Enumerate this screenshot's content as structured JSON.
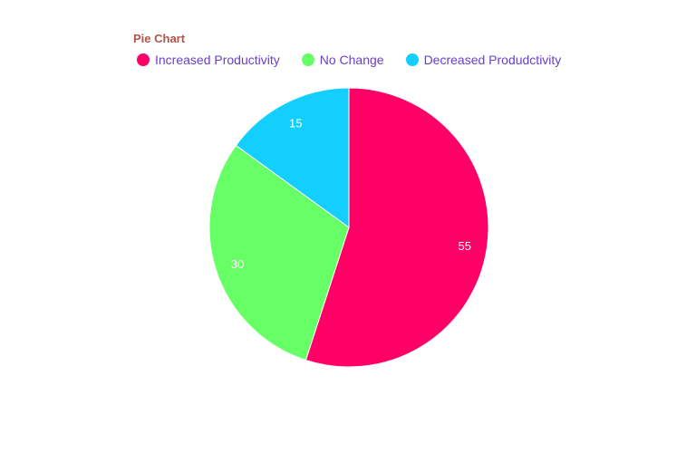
{
  "chart_data": {
    "type": "pie",
    "title": "Pie Chart",
    "categories": [
      "Increased Productivity",
      "No Change",
      "Decreased Produdctivity"
    ],
    "values": [
      55,
      30,
      15
    ],
    "colors": [
      "#ff0066",
      "#66ff66",
      "#13cfff"
    ],
    "legend_position": "top-left"
  }
}
